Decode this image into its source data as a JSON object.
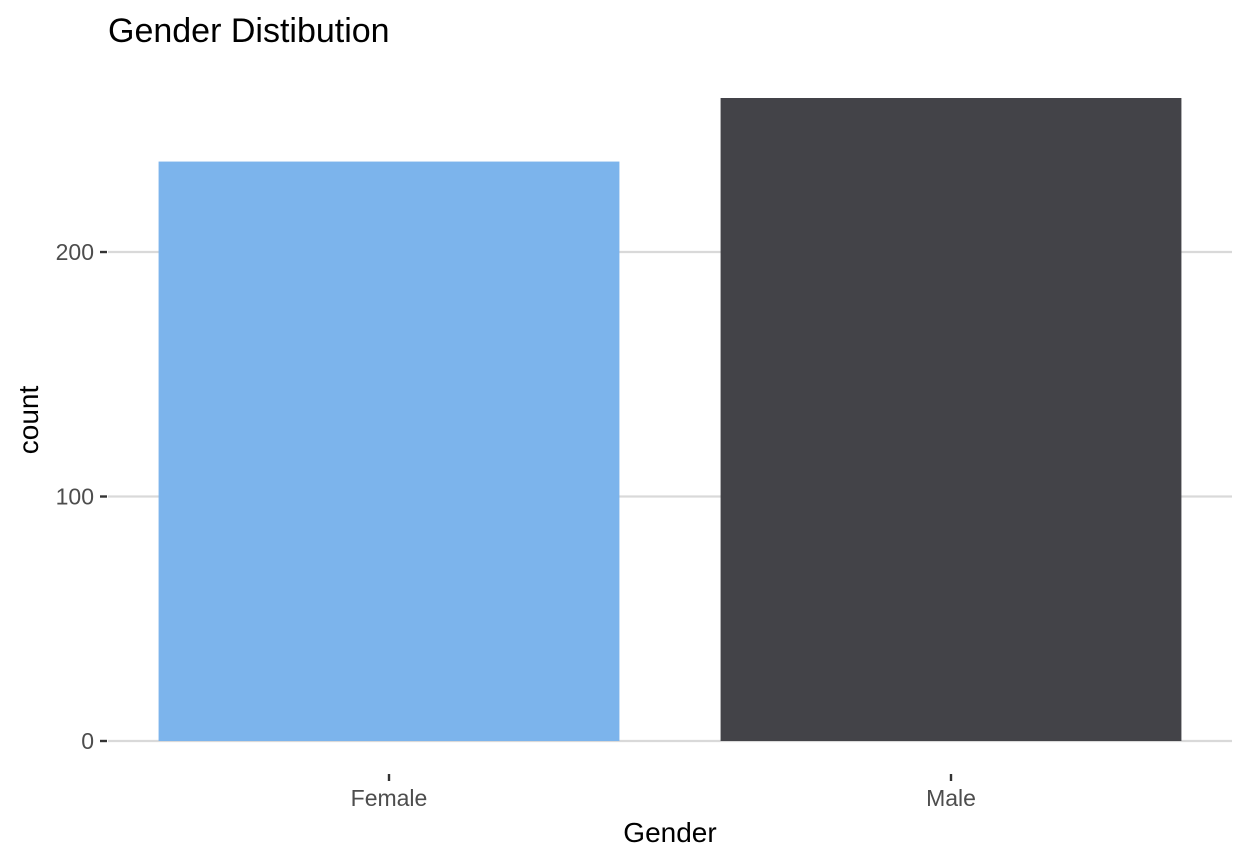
{
  "chart_data": {
    "type": "bar",
    "title": "Gender Distibution",
    "xlabel": "Gender",
    "ylabel": "count",
    "categories": [
      "Female",
      "Male"
    ],
    "values": [
      237,
      263
    ],
    "ylim": [
      0,
      263
    ],
    "yticks": [
      0,
      100,
      200
    ],
    "grid": true,
    "legend": "none",
    "colors": [
      "#7cb4ec",
      "#434348"
    ]
  }
}
